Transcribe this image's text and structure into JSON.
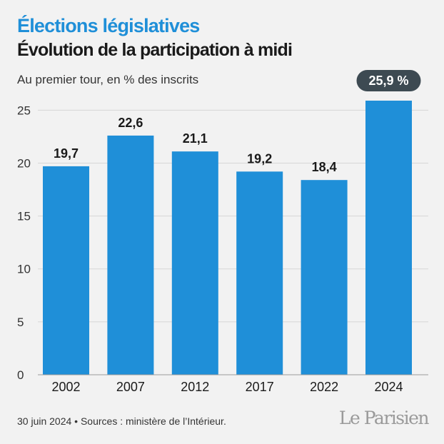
{
  "header": {
    "title": "Élections législatives",
    "subtitle": "Évolution de la participation à midi",
    "unit_note": "Au premier tour, en % des inscrits"
  },
  "chart_data": {
    "type": "bar",
    "categories": [
      "2002",
      "2007",
      "2012",
      "2017",
      "2022",
      "2024"
    ],
    "values": [
      19.7,
      22.6,
      21.1,
      19.2,
      18.4,
      25.9
    ],
    "data_labels": [
      "19,7",
      "22,6",
      "21,1",
      "19,2",
      "18,4",
      "25,9 %"
    ],
    "highlight_index": 5,
    "y_ticks": [
      0,
      5,
      10,
      15,
      20,
      25
    ],
    "ylim": [
      0,
      25.9
    ],
    "grid": true,
    "bar_color": "#1f8fd8",
    "highlight_label_bg": "#3d4a52",
    "grid_color": "#d6d6d6"
  },
  "footer": {
    "source": "30 juin 2024 • Sources : ministère de l’Intérieur.",
    "logo": "Le Parisien"
  }
}
